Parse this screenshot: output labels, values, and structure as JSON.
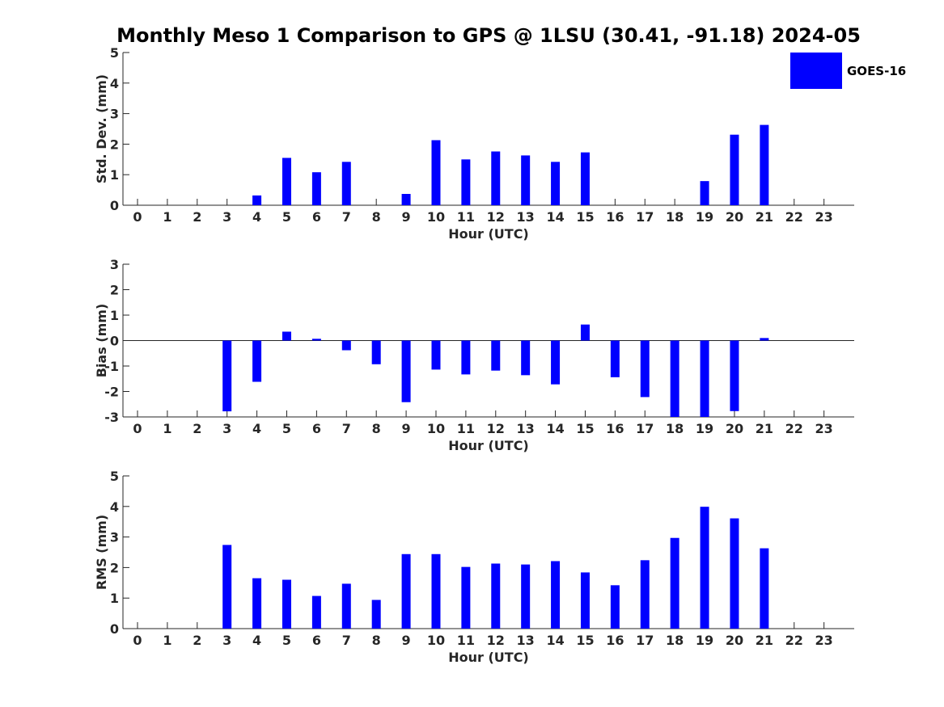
{
  "figure_title": "Monthly Meso 1 Comparison to GPS @ 1LSU (30.41, -91.18) 2024-05",
  "legend": {
    "label": "GOES-16",
    "color": "#0000FF"
  },
  "chart_data": [
    {
      "type": "bar",
      "panel": "std-dev",
      "xlabel": "Hour (UTC)",
      "ylabel": "Std. Dev. (mm)",
      "ylim": [
        0,
        5
      ],
      "yticks": [
        "0",
        "1",
        "2",
        "3",
        "4",
        "5"
      ],
      "categories": [
        "0",
        "1",
        "2",
        "3",
        "4",
        "5",
        "6",
        "7",
        "8",
        "9",
        "10",
        "11",
        "12",
        "13",
        "14",
        "15",
        "16",
        "17",
        "18",
        "19",
        "20",
        "21",
        "22",
        "23"
      ],
      "series": [
        {
          "name": "GOES-16",
          "color": "#0000FF",
          "values": [
            0,
            0,
            0,
            0,
            0.32,
            1.55,
            1.08,
            1.42,
            0,
            0.37,
            2.13,
            1.5,
            1.76,
            1.63,
            1.42,
            1.73,
            0,
            0,
            0,
            0.79,
            2.31,
            2.63,
            0,
            0
          ]
        }
      ]
    },
    {
      "type": "bar",
      "panel": "bias",
      "xlabel": "Hour (UTC)",
      "ylabel": "Bias (mm)",
      "ylim": [
        -3,
        3
      ],
      "yticks": [
        "-3",
        "-2",
        "-1",
        "0",
        "1",
        "2",
        "3"
      ],
      "categories": [
        "0",
        "1",
        "2",
        "3",
        "4",
        "5",
        "6",
        "7",
        "8",
        "9",
        "10",
        "11",
        "12",
        "13",
        "14",
        "15",
        "16",
        "17",
        "18",
        "19",
        "20",
        "21",
        "22",
        "23"
      ],
      "series": [
        {
          "name": "GOES-16",
          "color": "#0000FF",
          "values": [
            0,
            0,
            0,
            -2.78,
            -1.62,
            0.35,
            0.07,
            -0.38,
            -0.93,
            -2.42,
            -1.14,
            -1.33,
            -1.18,
            -1.36,
            -1.72,
            0.63,
            -1.44,
            -2.22,
            -3.0,
            -3.0,
            -2.77,
            0.1,
            0,
            0
          ]
        }
      ]
    },
    {
      "type": "bar",
      "panel": "rms",
      "xlabel": "Hour (UTC)",
      "ylabel": "RMS (mm)",
      "ylim": [
        0,
        5
      ],
      "yticks": [
        "0",
        "1",
        "2",
        "3",
        "4",
        "5"
      ],
      "categories": [
        "0",
        "1",
        "2",
        "3",
        "4",
        "5",
        "6",
        "7",
        "8",
        "9",
        "10",
        "11",
        "12",
        "13",
        "14",
        "15",
        "16",
        "17",
        "18",
        "19",
        "20",
        "21",
        "22",
        "23"
      ],
      "series": [
        {
          "name": "GOES-16",
          "color": "#0000FF",
          "values": [
            0,
            0,
            0,
            2.74,
            1.65,
            1.6,
            1.07,
            1.47,
            0.94,
            2.44,
            2.44,
            2.02,
            2.13,
            2.1,
            2.21,
            1.84,
            1.42,
            2.24,
            2.97,
            3.99,
            3.61,
            2.63,
            0,
            0
          ]
        }
      ]
    }
  ]
}
